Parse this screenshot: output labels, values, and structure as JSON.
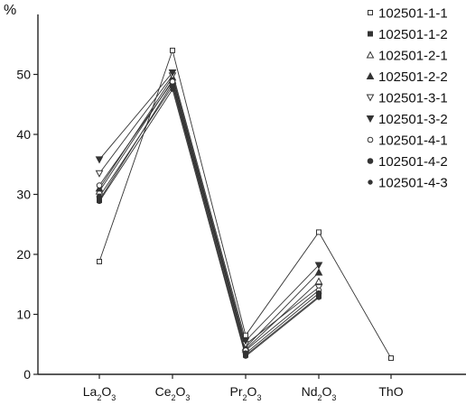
{
  "chart_data": {
    "type": "line",
    "ylabel": "%",
    "ylim": [
      0,
      60
    ],
    "yticks": [
      0,
      10,
      20,
      30,
      40,
      50
    ],
    "categories": [
      "La2O3",
      "Ce2O3",
      "Pr2O3",
      "Nd2O3",
      "ThO"
    ],
    "category_labels": [
      {
        "base": "La",
        "sub": "2",
        "rest": "O",
        "sub2": "3"
      },
      {
        "base": "Ce",
        "sub": "2",
        "rest": "O",
        "sub2": "3"
      },
      {
        "base": "Pr",
        "sub": "2",
        "rest": "O",
        "sub2": "3"
      },
      {
        "base": "Nd",
        "sub": "2",
        "rest": "O",
        "sub2": "3"
      },
      {
        "base": "ThO",
        "sub": "",
        "rest": "",
        "sub2": ""
      }
    ],
    "grid": false,
    "legend_position": "top-right",
    "line_color": "#333333",
    "series": [
      {
        "name": "102501-1-1",
        "marker": "square-open",
        "values": [
          18.8,
          54.0,
          6.5,
          23.7,
          2.7
        ]
      },
      {
        "name": "102501-1-2",
        "marker": "square-filled",
        "values": [
          29.0,
          48.5,
          3.2,
          13.0,
          null
        ]
      },
      {
        "name": "102501-2-1",
        "marker": "triangle-up-open",
        "values": [
          30.5,
          49.0,
          4.2,
          15.5,
          null
        ]
      },
      {
        "name": "102501-2-2",
        "marker": "triangle-up-filled",
        "values": [
          31.0,
          49.5,
          4.5,
          17.0,
          null
        ]
      },
      {
        "name": "102501-3-1",
        "marker": "triangle-down-open",
        "values": [
          33.5,
          49.8,
          5.0,
          14.5,
          null
        ]
      },
      {
        "name": "102501-3-2",
        "marker": "triangle-down-filled",
        "values": [
          35.8,
          50.3,
          5.6,
          18.2,
          null
        ]
      },
      {
        "name": "102501-4-1",
        "marker": "circle-open",
        "values": [
          31.5,
          48.8,
          4.0,
          14.0,
          null
        ]
      },
      {
        "name": "102501-4-2",
        "marker": "circle-filled",
        "values": [
          29.6,
          48.0,
          3.5,
          13.5,
          null
        ]
      },
      {
        "name": "102501-4-3",
        "marker": "dot-filled",
        "values": [
          28.8,
          47.5,
          3.0,
          12.8,
          null
        ]
      }
    ]
  }
}
